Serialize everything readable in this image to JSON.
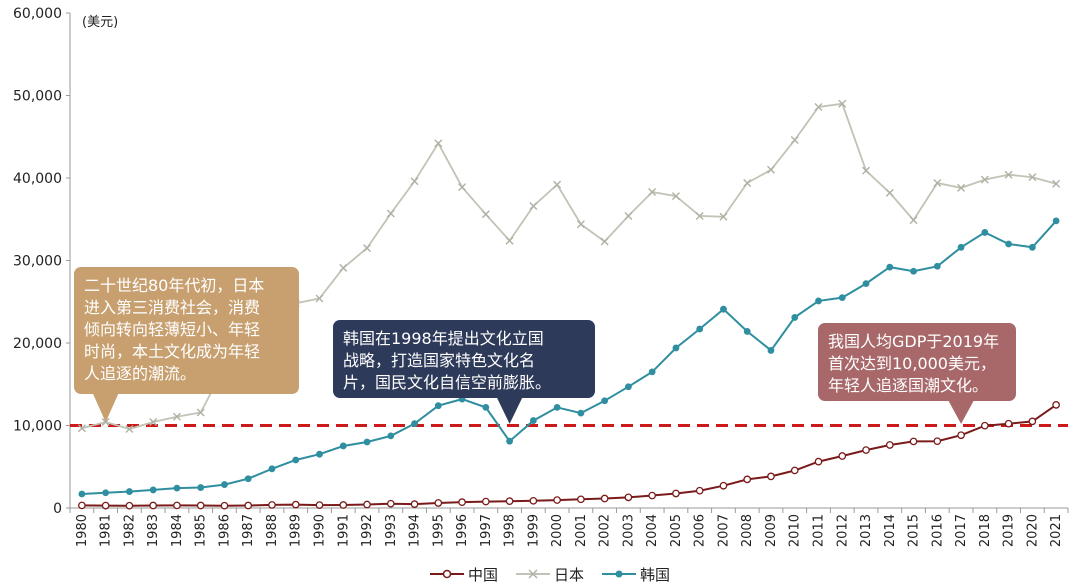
{
  "chart_data": {
    "type": "line",
    "unit_label": "(美元)",
    "x": [
      "1980",
      "1981",
      "1982",
      "1983",
      "1984",
      "1985",
      "1986",
      "1987",
      "1988",
      "1989",
      "1990",
      "1991",
      "1992",
      "1993",
      "1994",
      "1995",
      "1996",
      "1997",
      "1998",
      "1999",
      "2000",
      "2001",
      "2002",
      "2003",
      "2004",
      "2005",
      "2006",
      "2007",
      "2008",
      "2009",
      "2010",
      "2011",
      "2012",
      "2013",
      "2014",
      "2015",
      "2016",
      "2017",
      "2018",
      "2019",
      "2020",
      "2021"
    ],
    "ylim": [
      0,
      60000
    ],
    "yticks": [
      "0",
      "10,000",
      "20,000",
      "30,000",
      "40,000",
      "50,000",
      "60,000"
    ],
    "ytick_values": [
      0,
      10000,
      20000,
      30000,
      40000,
      50000,
      60000
    ],
    "grid": false,
    "series": [
      {
        "name": "中国",
        "color": "#7a1a1a",
        "marker": "hollow-circle",
        "values": [
          310,
          290,
          280,
          300,
          310,
          300,
          280,
          300,
          370,
          410,
          350,
          360,
          420,
          520,
          470,
          610,
          710,
          780,
          830,
          870,
          960,
          1050,
          1150,
          1290,
          1510,
          1760,
          2100,
          2700,
          3470,
          3830,
          4550,
          5620,
          6300,
          7020,
          7640,
          8070,
          8100,
          8820,
          9980,
          10220,
          10500,
          12500
        ]
      },
      {
        "name": "日本",
        "color": "#c2c2b6",
        "marker": "cross",
        "values": [
          9660,
          10430,
          9580,
          10420,
          11070,
          11580,
          17100,
          20700,
          25000,
          24800,
          25400,
          29100,
          31500,
          35700,
          39600,
          44200,
          38900,
          35600,
          32400,
          36600,
          39200,
          34400,
          32300,
          35400,
          38300,
          37800,
          35400,
          35300,
          39400,
          41000,
          44600,
          48600,
          49000,
          40900,
          38200,
          34900,
          39400,
          38800,
          39800,
          40400,
          40100,
          39300
        ]
      },
      {
        "name": "韩国",
        "color": "#2f8ea0",
        "marker": "filled-circle",
        "values": [
          1700,
          1850,
          1990,
          2190,
          2410,
          2480,
          2840,
          3550,
          4750,
          5820,
          6520,
          7520,
          8000,
          8740,
          10220,
          12400,
          13200,
          12200,
          8100,
          10600,
          12200,
          11500,
          13000,
          14700,
          16500,
          19400,
          21700,
          24100,
          21400,
          19100,
          23100,
          25100,
          25500,
          27200,
          29200,
          28700,
          29300,
          31600,
          33400,
          32000,
          31600,
          34800
        ]
      }
    ],
    "reference_line": {
      "value": 10000,
      "color": "#cc1a1a",
      "style": "dashed"
    },
    "annotations": [
      {
        "id": "japan",
        "text": "二十世纪80年代初，日本\n进入第三消费社会，消费\n倾向转向轻薄短小、年轻\n时尚，本土文化成为年轻\n人追逐的潮流。",
        "color": "#c8a070",
        "pointer_x": "1981",
        "pointer_y": 10400
      },
      {
        "id": "korea",
        "text": "韩国在1998年提出文化立国\n战略，打造国家特色文化名\n片，国民文化自信空前膨胀。",
        "color": "#2e3a5a",
        "pointer_x": "1998",
        "pointer_y": 10200
      },
      {
        "id": "china",
        "text": "我国人均GDP于2019年\n首次达到10,000美元，\n年轻人追逐国潮文化。",
        "color": "#a8686a",
        "pointer_x": "2017",
        "pointer_y": 10200
      }
    ],
    "legend": {
      "placement": "bottom"
    }
  }
}
